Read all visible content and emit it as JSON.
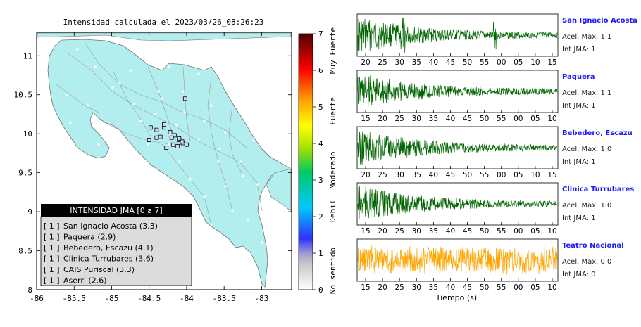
{
  "map": {
    "title": "Intensidad calculada el 2023/03/26_08:26:23",
    "lon_ticks": [
      "-86",
      "-85.5",
      "-85",
      "-84.5",
      "-84",
      "-83.5",
      "-83"
    ],
    "lat_ticks": [
      "11",
      "10.5",
      "10",
      "9.5",
      "9",
      "8.5",
      "8"
    ],
    "land_color": "#b3eeee",
    "station_marker_color": "#ffffff"
  },
  "legend": {
    "title": "INTENSIDAD JMA [0 a 7]",
    "items": [
      {
        "bracket": "[ 1 ]",
        "label": "San Ignacio Acosta (3.3)"
      },
      {
        "bracket": "[ 1 ]",
        "label": "Paquera (2.9)"
      },
      {
        "bracket": "[ 1 ]",
        "label": "Bebedero, Escazu (4.1)"
      },
      {
        "bracket": "[ 1 ]",
        "label": "Clinica Turrubares (3.6)"
      },
      {
        "bracket": "[ 1 ]",
        "label": "CAIS Puriscal (3.3)"
      },
      {
        "bracket": "[ 1 ]",
        "label": "Aserri (2.6)"
      }
    ]
  },
  "colorbar": {
    "ticks": [
      "7",
      "6",
      "5",
      "4",
      "3",
      "2",
      "1",
      "0"
    ],
    "categories": [
      "Muy Fuerte",
      "Fuerte",
      "Moderado",
      "Debil",
      "No sentido"
    ]
  },
  "waveforms": {
    "xlabel": "Tiempo (s)",
    "panels": [
      {
        "name": "San Ignacio Acosta",
        "accel": "Acel. Max. 1.1",
        "jma": "Int JMA: 1",
        "color": "#006400",
        "ticks": [
          "20",
          "25",
          "30",
          "35",
          "40",
          "45",
          "50",
          "55",
          "00",
          "05",
          "10",
          "15"
        ]
      },
      {
        "name": "Paquera",
        "accel": "Acel. Max. 1.1",
        "jma": "Int JMA: 1",
        "color": "#006400",
        "ticks": [
          "15",
          "20",
          "25",
          "30",
          "35",
          "40",
          "45",
          "50",
          "55",
          "00",
          "05",
          "10"
        ]
      },
      {
        "name": "Bebedero, Escazu",
        "accel": "Acel. Max. 1.0",
        "jma": "Int JMA: 1",
        "color": "#006400",
        "ticks": [
          "20",
          "25",
          "30",
          "35",
          "40",
          "45",
          "50",
          "55",
          "00",
          "05",
          "10",
          "15"
        ]
      },
      {
        "name": "Clinica Turrubares",
        "accel": "Acel. Max. 1.0",
        "jma": "Int JMA: 1",
        "color": "#006400",
        "ticks": [
          "15",
          "20",
          "25",
          "30",
          "35",
          "40",
          "45",
          "50",
          "55",
          "00",
          "05",
          "10"
        ]
      },
      {
        "name": "Teatro Nacional",
        "accel": "Acel. Max. 0.0",
        "jma": "Int JMA: 0",
        "color": "#ffa500",
        "ticks": [
          "15",
          "20",
          "25",
          "30",
          "35",
          "40",
          "45",
          "50",
          "55",
          "00",
          "05",
          "10"
        ]
      }
    ]
  },
  "chart_data": [
    {
      "type": "scatter",
      "title": "Intensidad calculada el 2023/03/26_08:26:23",
      "xlabel": "",
      "ylabel": "",
      "xlim": [
        -86,
        -82.5
      ],
      "ylim": [
        8,
        11.3
      ],
      "grid": false,
      "legend_placement": "bottom-left",
      "series": [
        {
          "name": "INTENSIDAD JMA [0 a 7]",
          "x": [
            -84.48,
            -84.4,
            -84.3,
            -84.22,
            -84.16,
            -84.1,
            -84.05,
            -84.0,
            -84.2,
            -84.12,
            -84.06,
            -84.27,
            -84.4,
            -84.5,
            -84.35,
            -84.1,
            -84.18,
            -84.3,
            -84.02
          ],
          "y": [
            10.08,
            10.05,
            10.08,
            10.02,
            9.98,
            9.92,
            9.88,
            9.86,
            9.95,
            9.84,
            9.9,
            9.82,
            9.95,
            9.92,
            9.96,
            9.94,
            9.86,
            10.12,
            10.45
          ],
          "values": [
            1,
            1,
            1,
            1,
            1,
            1,
            1,
            1,
            1,
            1,
            1,
            1,
            1,
            1,
            1,
            1,
            1,
            1,
            1
          ]
        }
      ]
    },
    {
      "type": "heatmap",
      "title": "",
      "zlim": [
        0,
        7
      ],
      "ticks": [
        0,
        1,
        2,
        3,
        4,
        5,
        6,
        7
      ],
      "categories": [
        "No sentido",
        "Debil",
        "Moderado",
        "Fuerte",
        "Muy Fuerte"
      ]
    },
    {
      "type": "line",
      "title": "",
      "xlabel": "Tiempo (s)",
      "ylabel": "",
      "series": [
        {
          "name": "San Ignacio Acosta",
          "peak_time": "33"
        },
        {
          "name": "Paquera"
        },
        {
          "name": "Bebedero, Escazu"
        },
        {
          "name": "Clinica Turrubares"
        },
        {
          "name": "Teatro Nacional"
        }
      ]
    }
  ]
}
